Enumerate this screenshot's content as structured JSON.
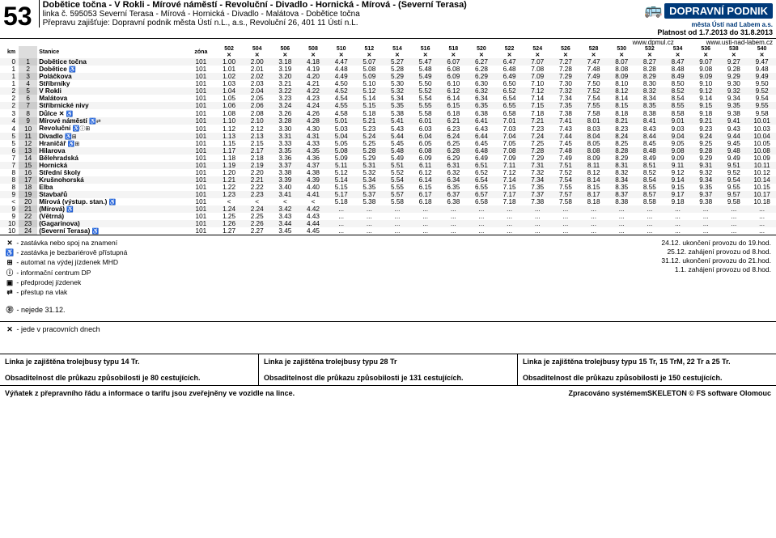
{
  "route_number": "53",
  "route_title": "Dobětice točna - V Rokli - Mírové náměstí - Revoluční - Divadlo - Hornická - Mírová - (Severní Terasa)",
  "route_sub1": "linka č. 595053 Severní Terasa - Mírová - Hornická - Divadlo - Malátova - Dobětice točna",
  "route_sub2": "Přepravu zajišťuje: Dopravní podnik města Ústí n.L., a.s., Revoluční 26, 401 11 Ústí n.L.",
  "dp_logo_top": "DOPRAVNÍ PODNIK",
  "dp_logo_sub": "města Ústí nad Labem a.s.",
  "validity": "Platnost od 1.7.2013 do 31.8.2013",
  "url1": "www.dpmul.cz",
  "url2": "www.usti-nad-labem.cz",
  "col_km": "km",
  "col_stop": "Stanice",
  "col_zone": "zóna",
  "trip_ids": [
    "502",
    "504",
    "506",
    "508",
    "510",
    "512",
    "514",
    "516",
    "518",
    "520",
    "522",
    "524",
    "526",
    "528",
    "530",
    "532",
    "534",
    "536",
    "538",
    "540"
  ],
  "workday_symbol": "✕",
  "stops": [
    {
      "km": "0",
      "idx": "1",
      "name": "Dobětice točna",
      "zone": "101",
      "times": [
        "1.00",
        "2.00",
        "3.18",
        "4.18",
        "4.47",
        "5.07",
        "5.27",
        "5.47",
        "6.07",
        "6.27",
        "6.47",
        "7.07",
        "7.27",
        "7.47",
        "8.07",
        "8.27",
        "8.47",
        "9.07",
        "9.27",
        "9.47"
      ]
    },
    {
      "km": "1",
      "idx": "2",
      "name": "Dobětice",
      "sym": "♿",
      "zone": "101",
      "times": [
        "1.01",
        "2.01",
        "3.19",
        "4.19",
        "4.48",
        "5.08",
        "5.28",
        "5.48",
        "6.08",
        "6.28",
        "6.48",
        "7.08",
        "7.28",
        "7.48",
        "8.08",
        "8.28",
        "8.48",
        "9.08",
        "9.28",
        "9.48"
      ]
    },
    {
      "km": "1",
      "idx": "3",
      "name": "Poláčkova",
      "zone": "101",
      "times": [
        "1.02",
        "2.02",
        "3.20",
        "4.20",
        "4.49",
        "5.09",
        "5.29",
        "5.49",
        "6.09",
        "6.29",
        "6.49",
        "7.09",
        "7.29",
        "7.49",
        "8.09",
        "8.29",
        "8.49",
        "9.09",
        "9.29",
        "9.49"
      ]
    },
    {
      "km": "1",
      "idx": "4",
      "name": "Stříbrníky",
      "zone": "101",
      "times": [
        "1.03",
        "2.03",
        "3.21",
        "4.21",
        "4.50",
        "5.10",
        "5.30",
        "5.50",
        "6.10",
        "6.30",
        "6.50",
        "7.10",
        "7.30",
        "7.50",
        "8.10",
        "8.30",
        "8.50",
        "9.10",
        "9.30",
        "9.50"
      ]
    },
    {
      "km": "2",
      "idx": "5",
      "name": "V Rokli",
      "zone": "101",
      "times": [
        "1.04",
        "2.04",
        "3.22",
        "4.22",
        "4.52",
        "5.12",
        "5.32",
        "5.52",
        "6.12",
        "6.32",
        "6.52",
        "7.12",
        "7.32",
        "7.52",
        "8.12",
        "8.32",
        "8.52",
        "9.12",
        "9.32",
        "9.52"
      ]
    },
    {
      "km": "2",
      "idx": "6",
      "name": "Malátova",
      "zone": "101",
      "times": [
        "1.05",
        "2.05",
        "3.23",
        "4.23",
        "4.54",
        "5.14",
        "5.34",
        "5.54",
        "6.14",
        "6.34",
        "6.54",
        "7.14",
        "7.34",
        "7.54",
        "8.14",
        "8.34",
        "8.54",
        "9.14",
        "9.34",
        "9.54"
      ]
    },
    {
      "km": "2",
      "idx": "7",
      "name": "Stříbrnické nivy",
      "zone": "101",
      "times": [
        "1.06",
        "2.06",
        "3.24",
        "4.24",
        "4.55",
        "5.15",
        "5.35",
        "5.55",
        "6.15",
        "6.35",
        "6.55",
        "7.15",
        "7.35",
        "7.55",
        "8.15",
        "8.35",
        "8.55",
        "9.15",
        "9.35",
        "9.55"
      ]
    },
    {
      "km": "3",
      "idx": "8",
      "name": "Důlce ✕",
      "sym": "♿",
      "zone": "101",
      "times": [
        "1.08",
        "2.08",
        "3.26",
        "4.26",
        "4.58",
        "5.18",
        "5.38",
        "5.58",
        "6.18",
        "6.38",
        "6.58",
        "7.18",
        "7.38",
        "7.58",
        "8.18",
        "8.38",
        "8.58",
        "9.18",
        "9.38",
        "9.58"
      ]
    },
    {
      "km": "4",
      "idx": "9",
      "name": "Mírové náměstí",
      "sym": "♿⇄",
      "zone": "101",
      "times": [
        "1.10",
        "2.10",
        "3.28",
        "4.28",
        "5.01",
        "5.21",
        "5.41",
        "6.01",
        "6.21",
        "6.41",
        "7.01",
        "7.21",
        "7.41",
        "8.01",
        "8.21",
        "8.41",
        "9.01",
        "9.21",
        "9.41",
        "10.01"
      ]
    },
    {
      "km": "4",
      "idx": "10",
      "name": "Revoluční",
      "sym": "♿ⓘ⊞",
      "zone": "101",
      "times": [
        "1.12",
        "2.12",
        "3.30",
        "4.30",
        "5.03",
        "5.23",
        "5.43",
        "6.03",
        "6.23",
        "6.43",
        "7.03",
        "7.23",
        "7.43",
        "8.03",
        "8.23",
        "8.43",
        "9.03",
        "9.23",
        "9.43",
        "10.03"
      ]
    },
    {
      "km": "5",
      "idx": "11",
      "name": "Divadlo",
      "sym": "♿⊞",
      "zone": "101",
      "times": [
        "1.13",
        "2.13",
        "3.31",
        "4.31",
        "5.04",
        "5.24",
        "5.44",
        "6.04",
        "6.24",
        "6.44",
        "7.04",
        "7.24",
        "7.44",
        "8.04",
        "8.24",
        "8.44",
        "9.04",
        "9.24",
        "9.44",
        "10.04"
      ]
    },
    {
      "km": "5",
      "idx": "12",
      "name": "Hraničář",
      "sym": "♿⊞",
      "zone": "101",
      "times": [
        "1.15",
        "2.15",
        "3.33",
        "4.33",
        "5.05",
        "5.25",
        "5.45",
        "6.05",
        "6.25",
        "6.45",
        "7.05",
        "7.25",
        "7.45",
        "8.05",
        "8.25",
        "8.45",
        "9.05",
        "9.25",
        "9.45",
        "10.05"
      ]
    },
    {
      "km": "6",
      "idx": "13",
      "name": "Hilarova",
      "zone": "101",
      "times": [
        "1.17",
        "2.17",
        "3.35",
        "4.35",
        "5.08",
        "5.28",
        "5.48",
        "6.08",
        "6.28",
        "6.48",
        "7.08",
        "7.28",
        "7.48",
        "8.08",
        "8.28",
        "8.48",
        "9.08",
        "9.28",
        "9.48",
        "10.08"
      ]
    },
    {
      "km": "7",
      "idx": "14",
      "name": "Bělehradská",
      "zone": "101",
      "times": [
        "1.18",
        "2.18",
        "3.36",
        "4.36",
        "5.09",
        "5.29",
        "5.49",
        "6.09",
        "6.29",
        "6.49",
        "7.09",
        "7.29",
        "7.49",
        "8.09",
        "8.29",
        "8.49",
        "9.09",
        "9.29",
        "9.49",
        "10.09"
      ]
    },
    {
      "km": "7",
      "idx": "15",
      "name": "Hornická",
      "zone": "101",
      "times": [
        "1.19",
        "2.19",
        "3.37",
        "4.37",
        "5.11",
        "5.31",
        "5.51",
        "6.11",
        "6.31",
        "6.51",
        "7.11",
        "7.31",
        "7.51",
        "8.11",
        "8.31",
        "8.51",
        "9.11",
        "9.31",
        "9.51",
        "10.11"
      ]
    },
    {
      "km": "8",
      "idx": "16",
      "name": "Střední školy",
      "zone": "101",
      "times": [
        "1.20",
        "2.20",
        "3.38",
        "4.38",
        "5.12",
        "5.32",
        "5.52",
        "6.12",
        "6.32",
        "6.52",
        "7.12",
        "7.32",
        "7.52",
        "8.12",
        "8.32",
        "8.52",
        "9.12",
        "9.32",
        "9.52",
        "10.12"
      ]
    },
    {
      "km": "8",
      "idx": "17",
      "name": "Krušnohorská",
      "zone": "101",
      "times": [
        "1.21",
        "2.21",
        "3.39",
        "4.39",
        "5.14",
        "5.34",
        "5.54",
        "6.14",
        "6.34",
        "6.54",
        "7.14",
        "7.34",
        "7.54",
        "8.14",
        "8.34",
        "8.54",
        "9.14",
        "9.34",
        "9.54",
        "10.14"
      ]
    },
    {
      "km": "8",
      "idx": "18",
      "name": "Elba",
      "zone": "101",
      "times": [
        "1.22",
        "2.22",
        "3.40",
        "4.40",
        "5.15",
        "5.35",
        "5.55",
        "6.15",
        "6.35",
        "6.55",
        "7.15",
        "7.35",
        "7.55",
        "8.15",
        "8.35",
        "8.55",
        "9.15",
        "9.35",
        "9.55",
        "10.15"
      ]
    },
    {
      "km": "9",
      "idx": "19",
      "name": "Stavbařů",
      "zone": "101",
      "times": [
        "1.23",
        "2.23",
        "3.41",
        "4.41",
        "5.17",
        "5.37",
        "5.57",
        "6.17",
        "6.37",
        "6.57",
        "7.17",
        "7.37",
        "7.57",
        "8.17",
        "8.37",
        "8.57",
        "9.17",
        "9.37",
        "9.57",
        "10.17"
      ]
    },
    {
      "km": "<",
      "idx": "20",
      "name": "Mírová (výstup. stan.)",
      "sym": "♿",
      "zone": "101",
      "times": [
        "<",
        "<",
        "<",
        "<",
        "5.18",
        "5.38",
        "5.58",
        "6.18",
        "6.38",
        "6.58",
        "7.18",
        "7.38",
        "7.58",
        "8.18",
        "8.38",
        "8.58",
        "9.18",
        "9.38",
        "9.58",
        "10.18"
      ]
    },
    {
      "km": "9",
      "idx": "21",
      "name": "(Mírová)",
      "sym": "♿",
      "zone": "101",
      "times": [
        "1.24",
        "2.24",
        "3.42",
        "4.42",
        "...",
        "...",
        "...",
        "...",
        "...",
        "...",
        "...",
        "...",
        "...",
        "...",
        "...",
        "...",
        "...",
        "...",
        "...",
        "..."
      ]
    },
    {
      "km": "9",
      "idx": "22",
      "name": "(Větrná)",
      "zone": "101",
      "times": [
        "1.25",
        "2.25",
        "3.43",
        "4.43",
        "...",
        "...",
        "...",
        "...",
        "...",
        "...",
        "...",
        "...",
        "...",
        "...",
        "...",
        "...",
        "...",
        "...",
        "...",
        "..."
      ]
    },
    {
      "km": "10",
      "idx": "23",
      "name": "(Gagarinova)",
      "zone": "101",
      "times": [
        "1.26",
        "2.26",
        "3.44",
        "4.44",
        "...",
        "...",
        "...",
        "...",
        "...",
        "...",
        "...",
        "...",
        "...",
        "...",
        "...",
        "...",
        "...",
        "...",
        "...",
        "..."
      ]
    },
    {
      "km": "10",
      "idx": "24",
      "name": "(Severní Terasa)",
      "sym": "♿",
      "zone": "101",
      "times": [
        "1.27",
        "2.27",
        "3.45",
        "4.45",
        "...",
        "...",
        "...",
        "...",
        "...",
        "...",
        "...",
        "...",
        "...",
        "...",
        "...",
        "...",
        "...",
        "...",
        "...",
        "..."
      ]
    }
  ],
  "legend_left": [
    {
      "s": "✕",
      "t": "- zastávka nebo spoj na znamení"
    },
    {
      "s": "♿",
      "t": "- zastávka je bezbariérově přístupná"
    },
    {
      "s": "⊞",
      "t": "- automat na výdej jízdenek MHD"
    },
    {
      "s": "ⓘ",
      "t": "- informační centrum DP"
    },
    {
      "s": "▣",
      "t": "- předprodej jízdenek"
    },
    {
      "s": "⇄",
      "t": "- přestup na vlak"
    }
  ],
  "legend_31": {
    "s": "㉛",
    "t": "- nejede 31.12."
  },
  "legend_work": {
    "s": "✕",
    "t": "- jede v pracovních dnech"
  },
  "legend_right": [
    "24.12. ukončení provozu do 19.hod.",
    "25.12. zahájení provozu od 8.hod.",
    "31.12. ukončení provozu do 21.hod.",
    "1.1. zahájení provozu od 8.hod."
  ],
  "footer1a": "Linka je zajištěna trolejbusy typu 14 Tr.",
  "footer1b": "Obsaditelnost dle průkazu způsobilosti je 80 cestujících.",
  "footer2a": "Linka je zajištěna trolejbusy typu 28 Tr",
  "footer2b": "Obsaditelnost dle průkazu způsobilosti je 131 cestujících.",
  "footer3a": "Linka je zajištěna trolejbusy typu 15 Tr, 15 TrM, 22 Tr a 25 Tr.",
  "footer3b": "Obsaditelnost dle průkazu způsobilosti je 150 cestujících.",
  "footer_bottom_left": "Výňatek z přepravního řádu a informace o tarifu jsou zveřejněny ve vozidle na lince.",
  "footer_bottom_right": "Zpracováno systémemSKELETON © FS software Olomouc"
}
